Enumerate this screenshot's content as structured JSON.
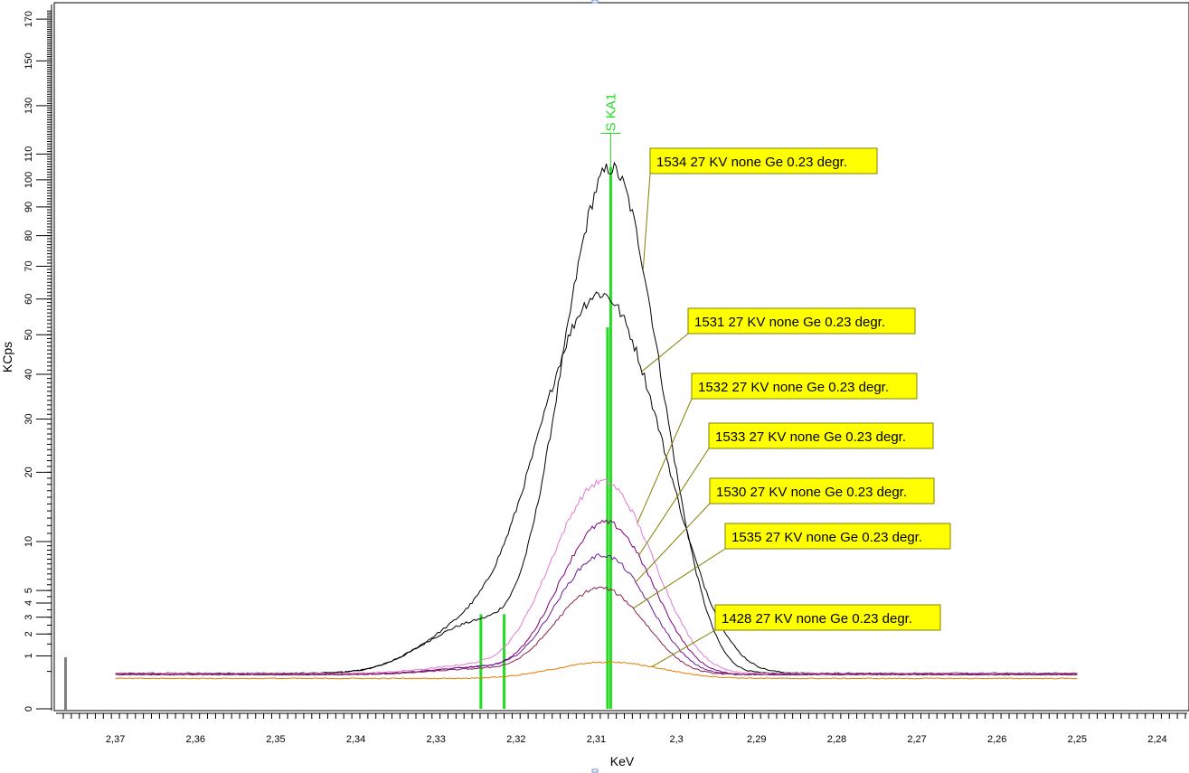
{
  "chart_data": {
    "type": "line",
    "xlabel": "KeV",
    "ylabel": "KCps",
    "xlim": [
      2.2365,
      2.3765
    ],
    "x_reversed": true,
    "y_scale": "sqrt",
    "ylim": [
      0,
      175
    ],
    "x_ticks": [
      {
        "v": 2.37,
        "t": "2,37"
      },
      {
        "v": 2.36,
        "t": "2,36"
      },
      {
        "v": 2.35,
        "t": "2,35"
      },
      {
        "v": 2.34,
        "t": "2,34"
      },
      {
        "v": 2.33,
        "t": "2,33"
      },
      {
        "v": 2.32,
        "t": "2,32"
      },
      {
        "v": 2.31,
        "t": "2,31"
      },
      {
        "v": 2.3,
        "t": "2,3"
      },
      {
        "v": 2.29,
        "t": "2,29"
      },
      {
        "v": 2.28,
        "t": "2,28"
      },
      {
        "v": 2.27,
        "t": "2,27"
      },
      {
        "v": 2.26,
        "t": "2,26"
      },
      {
        "v": 2.25,
        "t": "2,25"
      },
      {
        "v": 2.24,
        "t": "2,24"
      }
    ],
    "y_ticks": [
      {
        "v": 0,
        "t": "0"
      },
      {
        "v": 1,
        "t": "1"
      },
      {
        "v": 2,
        "t": "2"
      },
      {
        "v": 3,
        "t": "3"
      },
      {
        "v": 4,
        "t": "4"
      },
      {
        "v": 5,
        "t": "5"
      },
      {
        "v": 10,
        "t": "10"
      },
      {
        "v": 20,
        "t": "20"
      },
      {
        "v": 30,
        "t": "30"
      },
      {
        "v": 40,
        "t": "40"
      },
      {
        "v": 50,
        "t": "50"
      },
      {
        "v": 60,
        "t": "60"
      },
      {
        "v": 70,
        "t": "70"
      },
      {
        "v": 80,
        "t": "80"
      },
      {
        "v": 90,
        "t": "90"
      },
      {
        "v": 100,
        "t": "100"
      },
      {
        "v": 110,
        "t": "110"
      },
      {
        "v": 130,
        "t": "130"
      },
      {
        "v": 150,
        "t": "150"
      },
      {
        "v": 170,
        "t": "170"
      }
    ],
    "element_lines": [
      {
        "label": "S  KA1",
        "x": 2.3082,
        "height": 105,
        "color": "#22dd22"
      },
      {
        "label": "",
        "x": 2.3086,
        "height": 52,
        "color": "#22dd22"
      },
      {
        "label": "",
        "x": 2.3244,
        "height": 3.2,
        "color": "#22dd22"
      },
      {
        "label": "",
        "x": 2.3215,
        "height": 3.2,
        "color": "#22dd22"
      }
    ],
    "series": [
      {
        "name": "1534 27 KV none Ge 0.23 degr.",
        "color": "#000000",
        "baseline": 0.45,
        "peak": 104,
        "center": 2.3082,
        "sigma": 0.0045,
        "shoulder": 2.3,
        "shoulder_center": 2.324,
        "shoulder_sigma": 0.006,
        "end": [
          2.37,
          2.25
        ]
      },
      {
        "name": "1531 27 KV none Ge 0.23 degr.",
        "color": "#000000",
        "baseline": 0.45,
        "peak": 61,
        "center": 2.3095,
        "sigma": 0.0058,
        "shoulder": 2.3,
        "shoulder_center": 2.324,
        "shoulder_sigma": 0.006,
        "end": [
          2.37,
          2.25
        ]
      },
      {
        "name": "1532 27 KV none Ge 0.23 degr.",
        "color": "#e27ad0",
        "baseline": 0.45,
        "peak": 18,
        "center": 2.3092,
        "sigma": 0.0048,
        "shoulder": 0.25,
        "shoulder_center": 2.324,
        "shoulder_sigma": 0.006,
        "end": [
          2.37,
          2.25
        ]
      },
      {
        "name": "1533 27 KV none Ge 0.23 degr.",
        "color": "#800080",
        "baseline": 0.42,
        "peak": 12,
        "center": 2.3088,
        "sigma": 0.0045,
        "shoulder": 0.2,
        "shoulder_center": 2.324,
        "shoulder_sigma": 0.006,
        "end": [
          2.37,
          2.25
        ]
      },
      {
        "name": "1530 27 KV none Ge 0.23 degr.",
        "color": "#6a1b9a",
        "baseline": 0.42,
        "peak": 8,
        "center": 2.3092,
        "sigma": 0.0045,
        "shoulder": 0.2,
        "shoulder_center": 2.324,
        "shoulder_sigma": 0.006,
        "end": [
          2.37,
          2.25
        ]
      },
      {
        "name": "1535 27 KV none Ge 0.23 degr.",
        "color": "#8b2252",
        "baseline": 0.42,
        "peak": 4.8,
        "center": 2.3095,
        "sigma": 0.0045,
        "shoulder": 0.15,
        "shoulder_center": 2.324,
        "shoulder_sigma": 0.006,
        "end": [
          2.37,
          2.25
        ]
      },
      {
        "name": "1428 27 KV none Ge 0.23 degr.",
        "color": "#e07b00",
        "baseline": 0.33,
        "peak": 0.45,
        "center": 2.3085,
        "sigma": 0.006,
        "shoulder": 0,
        "shoulder_center": 2.324,
        "shoulder_sigma": 0.006,
        "end": [
          2.37,
          2.25
        ]
      }
    ],
    "annotations": [
      {
        "text": "1534 27 KV none Ge 0.23 degr.",
        "series": 0
      },
      {
        "text": "1531 27 KV none Ge 0.23 degr.",
        "series": 1
      },
      {
        "text": "1532 27 KV none Ge 0.23 degr.",
        "series": 2
      },
      {
        "text": "1533 27 KV none Ge 0.23 degr.",
        "series": 3
      },
      {
        "text": "1530 27 KV none Ge 0.23 degr.",
        "series": 4
      },
      {
        "text": "1535 27 KV none Ge 0.23 degr.",
        "series": 5
      },
      {
        "text": "1428 27 KV none Ge 0.23 degr.",
        "series": 6
      }
    ],
    "annotation_style": {
      "fill": "#ffff00",
      "border": "#808000",
      "leader": "#808000"
    }
  }
}
